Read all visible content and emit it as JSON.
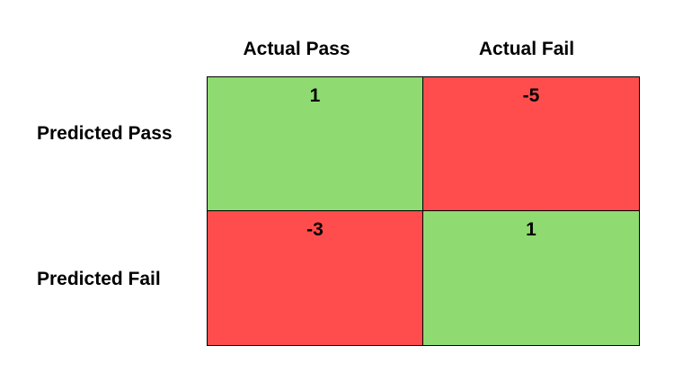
{
  "matrix": {
    "column_headers": [
      "Actual Pass",
      "Actual Fail"
    ],
    "row_headers": [
      "Predicted Pass",
      "Predicted Fail"
    ],
    "cells": [
      [
        {
          "value": "1",
          "color": "#8fdb72"
        },
        {
          "value": "-5",
          "color": "#ff4d4d"
        }
      ],
      [
        {
          "value": "-3",
          "color": "#ff4d4d"
        },
        {
          "value": "1",
          "color": "#8fdb72"
        }
      ]
    ]
  }
}
